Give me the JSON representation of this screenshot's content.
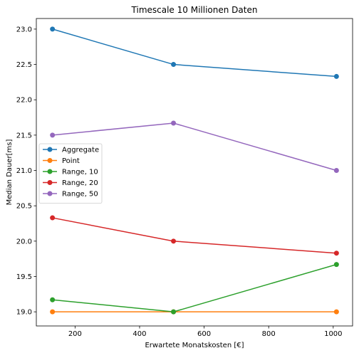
{
  "chart_data": {
    "type": "line",
    "title": "Timescale 10 Millionen Daten",
    "xlabel": "Erwartete Monatskosten [€]",
    "ylabel": "Median Dauer[ms]",
    "xlim": [
      80,
      1060
    ],
    "ylim": [
      18.8,
      23.15
    ],
    "xticks": [
      200,
      400,
      600,
      800,
      1000
    ],
    "yticks": [
      19.0,
      19.5,
      20.0,
      20.5,
      21.0,
      21.5,
      22.0,
      22.5,
      23.0
    ],
    "x": [
      130,
      505,
      1010
    ],
    "grid": false,
    "legend_position": "center-left",
    "series": [
      {
        "name": "Aggregate",
        "color": "#1f77b4",
        "values": [
          23.0,
          22.5,
          22.33
        ]
      },
      {
        "name": "Point",
        "color": "#ff7f0e",
        "values": [
          19.0,
          19.0,
          19.0
        ]
      },
      {
        "name": "Range, 10",
        "color": "#2ca02c",
        "values": [
          19.17,
          19.0,
          19.67
        ]
      },
      {
        "name": "Range, 20",
        "color": "#d62728",
        "values": [
          20.33,
          20.0,
          19.83
        ]
      },
      {
        "name": "Range, 50",
        "color": "#9467bd",
        "values": [
          21.5,
          21.67,
          21.0
        ]
      }
    ]
  }
}
